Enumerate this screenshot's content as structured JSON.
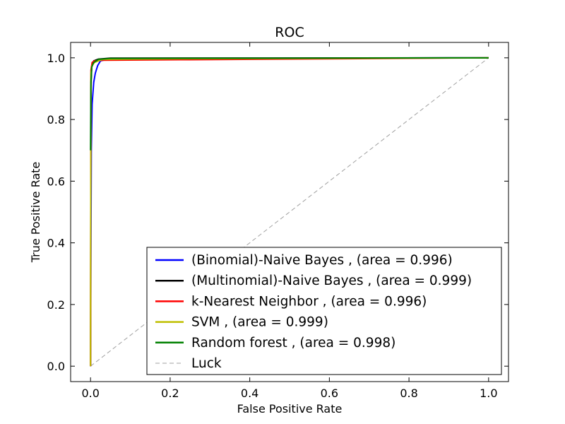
{
  "chart_data": {
    "type": "line",
    "title": "ROC",
    "xlabel": "False Positive Rate",
    "ylabel": "True Positive Rate",
    "xlim": [
      -0.05,
      1.05
    ],
    "ylim": [
      -0.05,
      1.05
    ],
    "xticks": [
      0.0,
      0.2,
      0.4,
      0.6,
      0.8,
      1.0
    ],
    "yticks": [
      0.0,
      0.2,
      0.4,
      0.6,
      0.8,
      1.0
    ],
    "xtick_labels": [
      "0.0",
      "0.2",
      "0.4",
      "0.6",
      "0.8",
      "1.0"
    ],
    "ytick_labels": [
      "0.0",
      "0.2",
      "0.4",
      "0.6",
      "0.8",
      "1.0"
    ],
    "grid": false,
    "legend_position": "lower-right",
    "series": [
      {
        "name": "(Binomial)-Naive Bayes , (area = 0.996)",
        "color": "#0000ff",
        "style": "solid",
        "points": [
          [
            0.0,
            0.0
          ],
          [
            0.002,
            0.7
          ],
          [
            0.004,
            0.85
          ],
          [
            0.008,
            0.92
          ],
          [
            0.012,
            0.95
          ],
          [
            0.018,
            0.975
          ],
          [
            0.025,
            0.99
          ],
          [
            0.05,
            0.998
          ],
          [
            1.0,
            1.0
          ]
        ]
      },
      {
        "name": "(Multinomial)-Naive Bayes , (area = 0.999)",
        "color": "#000000",
        "style": "solid",
        "points": [
          [
            0.0,
            0.0
          ],
          [
            0.001,
            0.9
          ],
          [
            0.003,
            0.97
          ],
          [
            0.008,
            0.99
          ],
          [
            0.02,
            0.996
          ],
          [
            0.05,
            0.999
          ],
          [
            1.0,
            1.0
          ]
        ]
      },
      {
        "name": "k-Nearest Neighbor , (area = 0.996)",
        "color": "#ff0000",
        "style": "solid",
        "points": [
          [
            0.0,
            0.0
          ],
          [
            0.001,
            0.96
          ],
          [
            0.004,
            0.985
          ],
          [
            0.01,
            0.99
          ],
          [
            0.03,
            0.992
          ],
          [
            0.25,
            0.994
          ],
          [
            1.0,
            1.0
          ]
        ]
      },
      {
        "name": "SVM , (area = 0.999)",
        "color": "#bfbf00",
        "style": "solid",
        "points": [
          [
            0.0,
            0.0
          ],
          [
            0.001,
            0.95
          ],
          [
            0.004,
            0.975
          ],
          [
            0.01,
            0.985
          ],
          [
            0.02,
            0.99
          ],
          [
            0.03,
            0.995
          ],
          [
            0.23,
            0.997
          ],
          [
            1.0,
            1.0
          ]
        ]
      },
      {
        "name": "Random forest , (area = 0.998)",
        "color": "#008000",
        "style": "solid",
        "points": [
          [
            0.0,
            0.7
          ],
          [
            0.001,
            0.92
          ],
          [
            0.003,
            0.97
          ],
          [
            0.008,
            0.985
          ],
          [
            0.02,
            0.995
          ],
          [
            0.05,
            0.998
          ],
          [
            1.0,
            1.0
          ]
        ]
      },
      {
        "name": "Luck",
        "color": "#a0a0a0",
        "style": "dashed",
        "points": [
          [
            0.0,
            0.0
          ],
          [
            1.0,
            1.0
          ]
        ]
      }
    ]
  }
}
